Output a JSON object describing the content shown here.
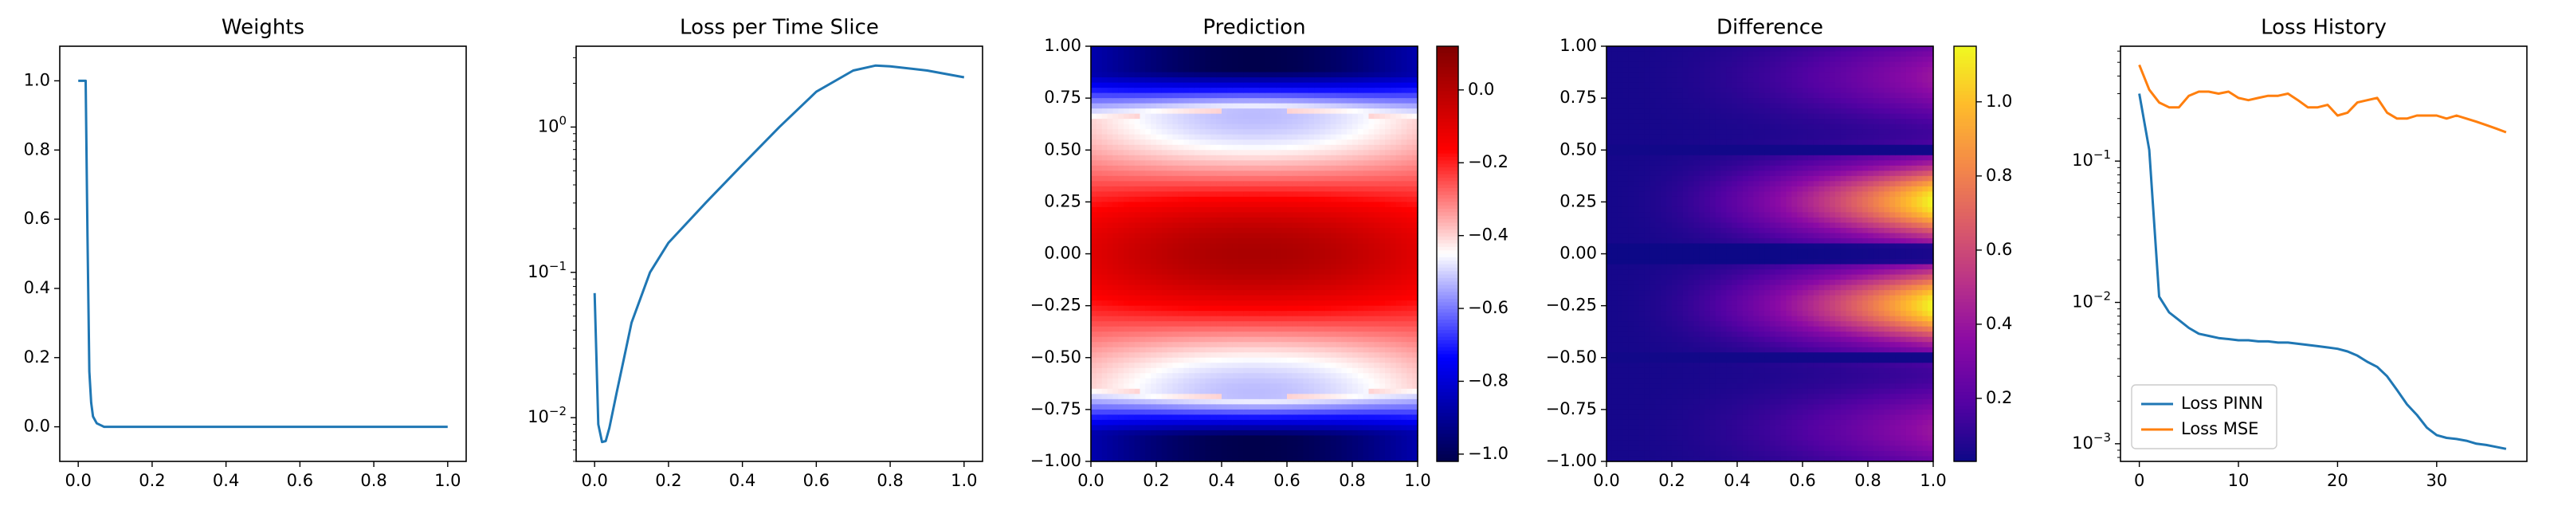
{
  "chart_data": [
    {
      "type": "line",
      "title": "Weights",
      "xlim": [
        -0.05,
        1.05
      ],
      "ylim": [
        -0.1,
        1.1
      ],
      "xticks": [
        "0.0",
        "0.2",
        "0.4",
        "0.6",
        "0.8",
        "1.0"
      ],
      "yticks": [
        "0.0",
        "0.2",
        "0.4",
        "0.6",
        "0.8",
        "1.0"
      ],
      "series": [
        {
          "color": "#1f77b4",
          "x": [
            0.0,
            0.01,
            0.02,
            0.025,
            0.03,
            0.035,
            0.04,
            0.05,
            0.07,
            0.1,
            0.2,
            0.4,
            0.6,
            0.8,
            1.0
          ],
          "y": [
            1.0,
            1.0,
            1.0,
            0.55,
            0.16,
            0.07,
            0.03,
            0.01,
            0.0,
            0.0,
            0.0,
            0.0,
            0.0,
            0.0,
            0.0
          ]
        }
      ]
    },
    {
      "type": "line",
      "title": "Loss per Time Slice",
      "yscale": "log",
      "xlim": [
        -0.05,
        1.05
      ],
      "ylim": [
        0.005,
        3.6
      ],
      "xticks": [
        "0.0",
        "0.2",
        "0.4",
        "0.6",
        "0.8",
        "1.0"
      ],
      "yticks": [
        {
          "base": "10",
          "exp": "0"
        },
        {
          "base": "10",
          "exp": "−1"
        },
        {
          "base": "10",
          "exp": "−2"
        }
      ],
      "series": [
        {
          "color": "#1f77b4",
          "x": [
            0.0,
            0.01,
            0.02,
            0.03,
            0.04,
            0.06,
            0.08,
            0.1,
            0.15,
            0.2,
            0.3,
            0.4,
            0.5,
            0.6,
            0.7,
            0.76,
            0.8,
            0.9,
            1.0
          ],
          "y": [
            0.072,
            0.009,
            0.0068,
            0.0069,
            0.0085,
            0.015,
            0.026,
            0.045,
            0.1,
            0.16,
            0.3,
            0.55,
            1.0,
            1.75,
            2.45,
            2.65,
            2.62,
            2.45,
            2.2
          ]
        }
      ]
    },
    {
      "type": "heatmap",
      "title": "Prediction",
      "colormap": "seismic",
      "xlim": [
        0,
        1
      ],
      "ylim": [
        -1,
        1
      ],
      "clim": [
        -1.02,
        0.12
      ],
      "xticks": [
        "0.0",
        "0.2",
        "0.4",
        "0.6",
        "0.8",
        "1.0"
      ],
      "yticks": [
        "1.00",
        "0.75",
        "0.50",
        "0.25",
        "0.00",
        "−0.25",
        "−0.50",
        "−0.75",
        "−1.00"
      ],
      "colorbar_ticks": [
        "0.0",
        "−0.2",
        "−0.4",
        "−0.6",
        "−0.8",
        "−1.0"
      ]
    },
    {
      "type": "heatmap",
      "title": "Difference",
      "colormap": "plasma",
      "xlim": [
        0,
        1
      ],
      "ylim": [
        -1,
        1
      ],
      "clim": [
        0.03,
        1.15
      ],
      "xticks": [
        "0.0",
        "0.2",
        "0.4",
        "0.6",
        "0.8",
        "1.0"
      ],
      "yticks": [
        "1.00",
        "0.75",
        "0.50",
        "0.25",
        "0.00",
        "−0.25",
        "−0.50",
        "−0.75",
        "−1.00"
      ],
      "colorbar_ticks": [
        "1.0",
        "0.8",
        "0.6",
        "0.4",
        "0.2"
      ]
    },
    {
      "type": "line",
      "title": "Loss History",
      "yscale": "log",
      "xlim": [
        -1.9,
        39.1
      ],
      "ylim": [
        0.00075,
        0.65
      ],
      "xticks": [
        "0",
        "10",
        "20",
        "30"
      ],
      "yticks": [
        {
          "base": "10",
          "exp": "−1"
        },
        {
          "base": "10",
          "exp": "−2"
        },
        {
          "base": "10",
          "exp": "−3"
        }
      ],
      "legend": "lower-left",
      "series": [
        {
          "name": "Loss PINN",
          "color": "#1f77b4",
          "x": [
            0,
            1,
            2,
            3,
            4,
            5,
            6,
            7,
            8,
            9,
            10,
            11,
            12,
            13,
            14,
            15,
            16,
            17,
            18,
            19,
            20,
            21,
            22,
            23,
            24,
            25,
            26,
            27,
            28,
            29,
            30,
            31,
            32,
            33,
            34,
            35,
            36,
            37
          ],
          "y": [
            0.3,
            0.12,
            0.011,
            0.0085,
            0.0075,
            0.0066,
            0.006,
            0.0058,
            0.0056,
            0.0055,
            0.0054,
            0.0054,
            0.0053,
            0.0053,
            0.0052,
            0.0052,
            0.0051,
            0.005,
            0.0049,
            0.0048,
            0.0047,
            0.0045,
            0.0042,
            0.0038,
            0.0035,
            0.003,
            0.0024,
            0.0019,
            0.0016,
            0.0013,
            0.00115,
            0.0011,
            0.00108,
            0.00105,
            0.001,
            0.00098,
            0.00095,
            0.00092
          ]
        },
        {
          "name": "Loss MSE",
          "color": "#ff7f0e",
          "x": [
            0,
            1,
            2,
            3,
            4,
            5,
            6,
            7,
            8,
            9,
            10,
            11,
            12,
            13,
            14,
            15,
            16,
            17,
            18,
            19,
            20,
            21,
            22,
            23,
            24,
            25,
            26,
            27,
            28,
            29,
            30,
            31,
            32,
            33,
            34,
            35,
            36,
            37
          ],
          "y": [
            0.48,
            0.32,
            0.26,
            0.24,
            0.24,
            0.29,
            0.31,
            0.31,
            0.3,
            0.31,
            0.28,
            0.27,
            0.28,
            0.29,
            0.29,
            0.3,
            0.27,
            0.24,
            0.24,
            0.25,
            0.21,
            0.22,
            0.26,
            0.27,
            0.28,
            0.22,
            0.2,
            0.2,
            0.21,
            0.21,
            0.21,
            0.2,
            0.21,
            0.2,
            0.19,
            0.18,
            0.17,
            0.16
          ]
        }
      ]
    }
  ]
}
